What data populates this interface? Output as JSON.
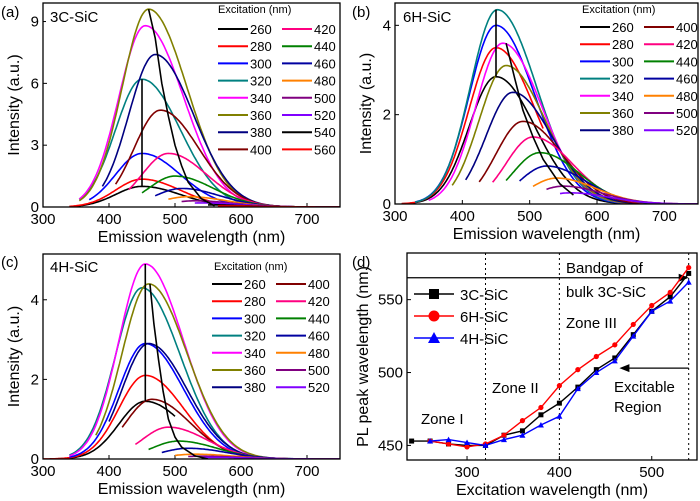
{
  "chart_data": [
    {
      "panel": "(a)",
      "type": "line",
      "title": "3C-SiC",
      "xlabel": "Emission wavelength (nm)",
      "ylabel": "Intensity (a.u.)",
      "xlim": [
        300,
        750
      ],
      "ylim": [
        0,
        9.9
      ],
      "xticks": [
        300,
        400,
        500,
        600,
        700
      ],
      "yticks": [
        0,
        3,
        6,
        9
      ],
      "legend_title": "Excitation (nm)",
      "legend_placement": "top-right",
      "series": [
        {
          "name": "260",
          "color": "#000000",
          "peak_nm": 450,
          "peak": 1.0,
          "start_nm": 340
        },
        {
          "name": "280",
          "color": "#ff0000",
          "peak_nm": 450,
          "peak": 1.35,
          "start_nm": 340
        },
        {
          "name": "300",
          "color": "#0000ff",
          "peak_nm": 450,
          "peak": 2.6,
          "start_nm": 370
        },
        {
          "name": "320",
          "color": "#008080",
          "peak_nm": 450,
          "peak": 6.2,
          "start_nm": 355
        },
        {
          "name": "340",
          "color": "#ff00ff",
          "peak_nm": 455,
          "peak": 8.8,
          "start_nm": 355
        },
        {
          "name": "360",
          "color": "#808000",
          "peak_nm": 460,
          "peak": 9.6,
          "start_nm": 355
        },
        {
          "name": "380",
          "color": "#000080",
          "peak_nm": 470,
          "peak": 7.4,
          "start_nm": 390
        },
        {
          "name": "400",
          "color": "#800000",
          "peak_nm": 478,
          "peak": 4.7,
          "start_nm": 410
        },
        {
          "name": "420",
          "color": "#ff0080",
          "peak_nm": 490,
          "peak": 2.6,
          "start_nm": 430
        },
        {
          "name": "440",
          "color": "#008000",
          "peak_nm": 500,
          "peak": 1.5,
          "start_nm": 450
        },
        {
          "name": "460",
          "color": "#0000a0",
          "peak_nm": 510,
          "peak": 0.9,
          "start_nm": 470
        },
        {
          "name": "480",
          "color": "#ff8000",
          "peak_nm": 520,
          "peak": 0.5,
          "start_nm": 490
        },
        {
          "name": "500",
          "color": "#800080",
          "peak_nm": 530,
          "peak": 0.3,
          "start_nm": 510
        },
        {
          "name": "520",
          "color": "#8000ff",
          "peak_nm": 540,
          "peak": 0.2,
          "start_nm": 530
        },
        {
          "name": "540",
          "color": "#000000",
          "peak_nm": 550,
          "peak": 0.1,
          "start_nm": 550
        },
        {
          "name": "560",
          "color": "#ff0000",
          "peak_nm": 570,
          "peak": 0.05,
          "start_nm": 565
        }
      ],
      "guides": [
        [
          [
            450,
            1.0
          ],
          [
            450,
            6.2
          ]
        ],
        [
          [
            460,
            9.6
          ],
          [
            470,
            8.2
          ],
          [
            480,
            6
          ],
          [
            490,
            4.4
          ],
          [
            500,
            3
          ],
          [
            510,
            2
          ],
          [
            520,
            1.2
          ],
          [
            540,
            0.4
          ],
          [
            560,
            0.05
          ]
        ]
      ]
    },
    {
      "panel": "(b)",
      "type": "line",
      "title": "6H-SiC",
      "xlabel": "Emission wavelength (nm)",
      "ylabel": "Intensity (a.u.)",
      "xlim": [
        300,
        750
      ],
      "ylim": [
        0,
        4.5
      ],
      "xticks": [
        300,
        400,
        500,
        600,
        700
      ],
      "yticks": [
        0,
        2,
        4
      ],
      "legend_title": "Excitation (nm)",
      "legend_placement": "top-right",
      "series": [
        {
          "name": "260",
          "color": "#000000",
          "peak_nm": 450,
          "peak": 2.85,
          "start_nm": 310
        },
        {
          "name": "280",
          "color": "#ff0000",
          "peak_nm": 450,
          "peak": 3.5,
          "start_nm": 310,
          "end_nm": 520
        },
        {
          "name": "300",
          "color": "#0000ff",
          "peak_nm": 450,
          "peak": 4.0,
          "start_nm": 330
        },
        {
          "name": "320",
          "color": "#008080",
          "peak_nm": 452,
          "peak": 4.35,
          "start_nm": 330
        },
        {
          "name": "340",
          "color": "#ff00ff",
          "peak_nm": 460,
          "peak": 3.6,
          "start_nm": 350
        },
        {
          "name": "360",
          "color": "#808000",
          "peak_nm": 465,
          "peak": 3.1,
          "start_nm": 385,
          "end_nm": 680
        },
        {
          "name": "380",
          "color": "#000080",
          "peak_nm": 475,
          "peak": 2.5,
          "start_nm": 405
        },
        {
          "name": "400",
          "color": "#800000",
          "peak_nm": 490,
          "peak": 1.85,
          "start_nm": 425
        },
        {
          "name": "420",
          "color": "#ff0080",
          "peak_nm": 505,
          "peak": 1.5,
          "start_nm": 445
        },
        {
          "name": "440",
          "color": "#008000",
          "peak_nm": 515,
          "peak": 1.15,
          "start_nm": 465
        },
        {
          "name": "460",
          "color": "#0000a0",
          "peak_nm": 525,
          "peak": 0.85,
          "start_nm": 485
        },
        {
          "name": "480",
          "color": "#ff8000",
          "peak_nm": 540,
          "peak": 0.58,
          "start_nm": 505
        },
        {
          "name": "500",
          "color": "#800080",
          "peak_nm": 550,
          "peak": 0.4,
          "start_nm": 525
        },
        {
          "name": "520",
          "color": "#8000ff",
          "peak_nm": 560,
          "peak": 0.25,
          "start_nm": 545
        }
      ],
      "guides": [
        [
          [
            450,
            2.85
          ],
          [
            450,
            4.35
          ]
        ],
        [
          [
            465,
            3.6
          ],
          [
            478,
            2.8
          ],
          [
            490,
            2.1
          ],
          [
            505,
            1.5
          ],
          [
            520,
            1.0
          ],
          [
            545,
            0.45
          ],
          [
            565,
            0.2
          ]
        ]
      ]
    },
    {
      "panel": "(c)",
      "type": "line",
      "title": "4H-SiC",
      "xlabel": "Emission wavelength (nm)",
      "ylabel": "Intensity (a.u.)",
      "xlim": [
        300,
        750
      ],
      "ylim": [
        0,
        5.15
      ],
      "xticks": [
        300,
        400,
        500,
        600,
        700
      ],
      "yticks": [
        0,
        2,
        4
      ],
      "legend_title": "Excitation (nm)",
      "legend_placement": "top-right",
      "series": [
        {
          "name": "260",
          "color": "#000000",
          "peak_nm": 455,
          "peak": 1.45,
          "start_nm": 310,
          "end_nm": 500
        },
        {
          "name": "280",
          "color": "#ff0000",
          "peak_nm": 455,
          "peak": 2.1,
          "start_nm": 300
        },
        {
          "name": "300",
          "color": "#0000ff",
          "peak_nm": 455,
          "peak": 2.9,
          "start_nm": 340
        },
        {
          "name": "320",
          "color": "#008080",
          "peak_nm": 450,
          "peak": 4.3,
          "start_nm": 340
        },
        {
          "name": "340",
          "color": "#ff00ff",
          "peak_nm": 455,
          "peak": 4.9,
          "start_nm": 340
        },
        {
          "name": "360",
          "color": "#808000",
          "peak_nm": 460,
          "peak": 4.4,
          "start_nm": 380
        },
        {
          "name": "380",
          "color": "#000080",
          "peak_nm": 460,
          "peak": 2.9,
          "start_nm": 400
        },
        {
          "name": "400",
          "color": "#800000",
          "peak_nm": 465,
          "peak": 1.5,
          "start_nm": 420
        },
        {
          "name": "420",
          "color": "#ff0080",
          "peak_nm": 490,
          "peak": 0.8,
          "start_nm": 440
        },
        {
          "name": "440",
          "color": "#008000",
          "peak_nm": 505,
          "peak": 0.45,
          "start_nm": 460
        },
        {
          "name": "460",
          "color": "#0000a0",
          "peak_nm": 520,
          "peak": 0.27,
          "start_nm": 480
        },
        {
          "name": "480",
          "color": "#ff8000",
          "peak_nm": 530,
          "peak": 0.12,
          "start_nm": 500
        },
        {
          "name": "500",
          "color": "#800080",
          "peak_nm": 540,
          "peak": 0.07,
          "start_nm": 520
        },
        {
          "name": "520",
          "color": "#8000ff",
          "peak_nm": 555,
          "peak": 0.04,
          "start_nm": 540
        }
      ],
      "guides": [
        [
          [
            455,
            1.45
          ],
          [
            455,
            4.9
          ]
        ],
        [
          [
            462,
            4.4
          ],
          [
            468,
            3.4
          ],
          [
            475,
            2.5
          ],
          [
            482,
            1.7
          ],
          [
            490,
            1.0
          ],
          [
            500,
            0.55
          ],
          [
            510,
            0.3
          ],
          [
            530,
            0.08
          ],
          [
            550,
            0
          ]
        ]
      ]
    },
    {
      "panel": "(d)",
      "type": "line",
      "xlabel": "Excitation wavelength (nm)",
      "ylabel": "PL peak wavelength (nm)",
      "xlim": [
        235,
        549
      ],
      "ylim": [
        440,
        582
      ],
      "xticks": [
        300,
        400,
        500
      ],
      "yticks": [
        450,
        500,
        550
      ],
      "legend_placement": "top-left",
      "series": [
        {
          "name": "3C-SiC",
          "color": "#000000",
          "marker": "square",
          "x": [
            240,
            260,
            280,
            300,
            320,
            340,
            360,
            380,
            400,
            420,
            440,
            460,
            480,
            500,
            520,
            540
          ],
          "y": [
            453,
            453,
            451,
            450,
            450,
            457,
            460,
            471,
            479,
            490,
            502,
            510,
            526,
            542,
            552,
            568
          ]
        },
        {
          "name": "6H-SiC",
          "color": "#ff0000",
          "marker": "circle",
          "x": [
            260,
            280,
            300,
            320,
            340,
            360,
            380,
            400,
            420,
            440,
            460,
            480,
            500,
            520,
            540
          ],
          "y": [
            453,
            451,
            449,
            451,
            457,
            467,
            476,
            491,
            502,
            511,
            519,
            533,
            546,
            555,
            572
          ]
        },
        {
          "name": "4H-SiC",
          "color": "#0000ff",
          "marker": "triangle",
          "x": [
            260,
            280,
            300,
            320,
            340,
            360,
            380,
            400,
            420,
            440,
            460,
            480,
            500,
            520,
            540
          ],
          "y": [
            453,
            454,
            452,
            450,
            454,
            457,
            464,
            470,
            489,
            500,
            508,
            525,
            542,
            549,
            562
          ]
        }
      ],
      "vlines": [
        320,
        400,
        540
      ],
      "annotations": {
        "zone1": "Zone I",
        "zone2": "Zone II",
        "zone3": "Zone III",
        "bandgap_line1": "Bandgap of",
        "bandgap_line2": "bulk 3C-SiC",
        "excitable_line1": "Excitable",
        "excitable_line2": "Region"
      },
      "bandgap_arrow_y": 565,
      "excitable_arrow": {
        "y": 503,
        "from_x": 540,
        "to_x": 465
      }
    }
  ]
}
